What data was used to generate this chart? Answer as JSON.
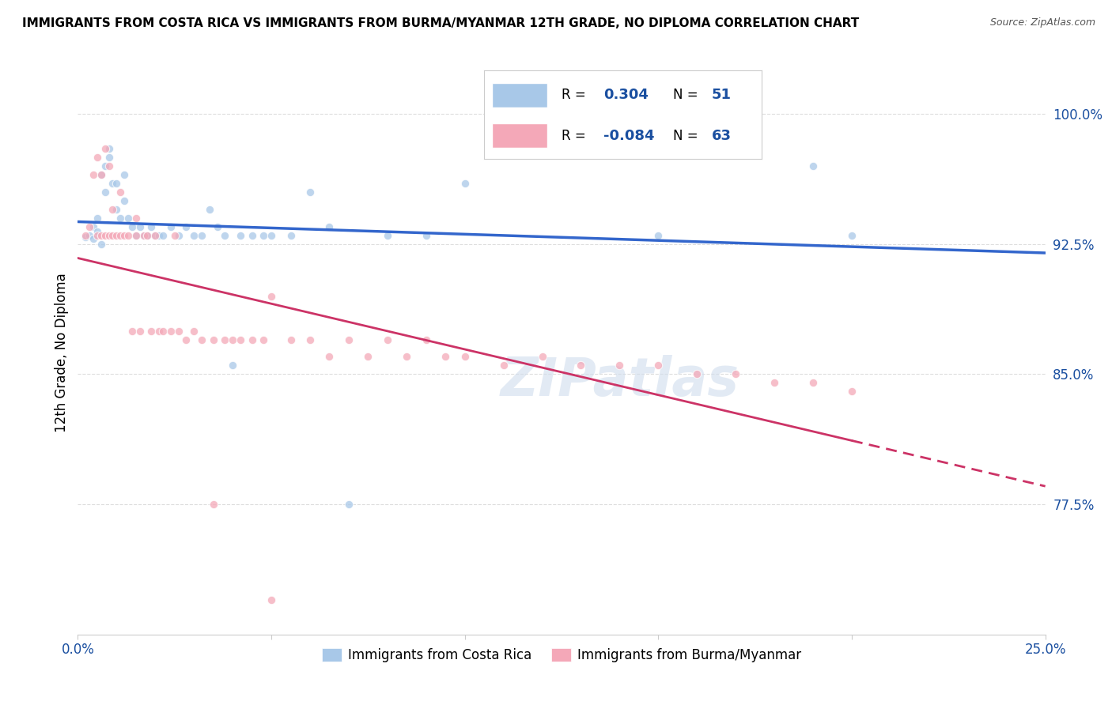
{
  "title": "IMMIGRANTS FROM COSTA RICA VS IMMIGRANTS FROM BURMA/MYANMAR 12TH GRADE, NO DIPLOMA CORRELATION CHART",
  "source": "Source: ZipAtlas.com",
  "ylabel": "12th Grade, No Diploma",
  "xlim": [
    0.0,
    0.25
  ],
  "ylim": [
    0.7,
    1.025
  ],
  "ytick_positions": [
    0.775,
    0.85,
    0.925,
    1.0
  ],
  "ytick_labels": [
    "77.5%",
    "85.0%",
    "92.5%",
    "100.0%"
  ],
  "xticklabels_left": "0.0%",
  "xticklabels_right": "25.0%",
  "legend1_label": "Immigrants from Costa Rica",
  "legend2_label": "Immigrants from Burma/Myanmar",
  "r_blue": 0.304,
  "n_blue": 51,
  "r_pink": -0.084,
  "n_pink": 63,
  "blue_color": "#a8c8e8",
  "pink_color": "#f4a8b8",
  "blue_line_color": "#3366cc",
  "pink_line_color": "#cc3366",
  "scatter_alpha": 0.75,
  "scatter_size": 55,
  "watermark": "ZIPatlas",
  "background_color": "#ffffff",
  "grid_color": "#dddddd",
  "text_color": "#1a4fa0",
  "ann_box_color": "#1a4fa0",
  "blue_points_x": [
    0.002,
    0.003,
    0.004,
    0.004,
    0.005,
    0.005,
    0.006,
    0.006,
    0.007,
    0.007,
    0.008,
    0.008,
    0.009,
    0.01,
    0.01,
    0.011,
    0.012,
    0.012,
    0.013,
    0.014,
    0.015,
    0.016,
    0.017,
    0.018,
    0.019,
    0.02,
    0.021,
    0.022,
    0.024,
    0.026,
    0.028,
    0.03,
    0.032,
    0.034,
    0.036,
    0.038,
    0.04,
    0.042,
    0.045,
    0.048,
    0.05,
    0.055,
    0.06,
    0.065,
    0.07,
    0.08,
    0.09,
    0.1,
    0.15,
    0.19,
    0.2
  ],
  "blue_points_y": [
    0.929,
    0.93,
    0.928,
    0.935,
    0.932,
    0.94,
    0.925,
    0.965,
    0.97,
    0.955,
    0.975,
    0.98,
    0.96,
    0.96,
    0.945,
    0.94,
    0.95,
    0.965,
    0.94,
    0.935,
    0.93,
    0.935,
    0.93,
    0.93,
    0.935,
    0.93,
    0.93,
    0.93,
    0.935,
    0.93,
    0.935,
    0.93,
    0.93,
    0.945,
    0.935,
    0.93,
    0.855,
    0.93,
    0.93,
    0.93,
    0.93,
    0.93,
    0.955,
    0.935,
    0.775,
    0.93,
    0.93,
    0.96,
    0.93,
    0.97,
    0.93
  ],
  "pink_points_x": [
    0.002,
    0.003,
    0.004,
    0.005,
    0.005,
    0.006,
    0.006,
    0.007,
    0.007,
    0.008,
    0.008,
    0.009,
    0.009,
    0.01,
    0.011,
    0.011,
    0.012,
    0.013,
    0.014,
    0.015,
    0.015,
    0.016,
    0.017,
    0.018,
    0.019,
    0.02,
    0.021,
    0.022,
    0.024,
    0.026,
    0.028,
    0.03,
    0.032,
    0.035,
    0.038,
    0.04,
    0.042,
    0.045,
    0.048,
    0.05,
    0.055,
    0.06,
    0.065,
    0.07,
    0.075,
    0.08,
    0.085,
    0.09,
    0.095,
    0.1,
    0.11,
    0.12,
    0.13,
    0.14,
    0.15,
    0.16,
    0.17,
    0.18,
    0.19,
    0.2,
    0.025,
    0.035,
    0.05
  ],
  "pink_points_y": [
    0.93,
    0.935,
    0.965,
    0.93,
    0.975,
    0.93,
    0.965,
    0.98,
    0.93,
    0.93,
    0.97,
    0.93,
    0.945,
    0.93,
    0.93,
    0.955,
    0.93,
    0.93,
    0.875,
    0.93,
    0.94,
    0.875,
    0.93,
    0.93,
    0.875,
    0.93,
    0.875,
    0.875,
    0.875,
    0.875,
    0.87,
    0.875,
    0.87,
    0.87,
    0.87,
    0.87,
    0.87,
    0.87,
    0.87,
    0.895,
    0.87,
    0.87,
    0.86,
    0.87,
    0.86,
    0.87,
    0.86,
    0.87,
    0.86,
    0.86,
    0.855,
    0.86,
    0.855,
    0.855,
    0.855,
    0.85,
    0.85,
    0.845,
    0.845,
    0.84,
    0.93,
    0.775,
    0.72
  ]
}
